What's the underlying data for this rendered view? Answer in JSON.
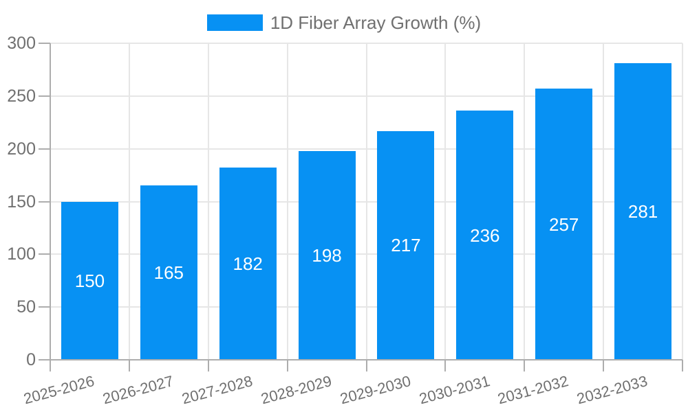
{
  "legend": {
    "label": "1D Fiber Array Growth (%)"
  },
  "colors": {
    "bar": "#0791F3",
    "grid": "#E6E6E6",
    "axis": "#ADADAD",
    "tick_label": "#707070",
    "legend_text": "#707070",
    "value_label": "#FFFFFF",
    "background": "#FFFFFF"
  },
  "chart_data": {
    "type": "bar",
    "title": "",
    "xlabel": "",
    "ylabel": "",
    "categories": [
      "2025-2026",
      "2026-2027",
      "2027-2028",
      "2028-2029",
      "2029-2030",
      "2030-2031",
      "2031-2032",
      "2032-2033"
    ],
    "series": [
      {
        "name": "1D Fiber Array Growth (%)",
        "values": [
          150,
          165,
          182,
          198,
          217,
          236,
          257,
          281
        ]
      }
    ],
    "ylim": [
      0,
      300
    ],
    "yticks": [
      0,
      50,
      100,
      150,
      200,
      250,
      300
    ],
    "grid": true,
    "legend_position": "top-center",
    "value_labels": "inside-center",
    "x_label_rotation_deg": -15
  }
}
